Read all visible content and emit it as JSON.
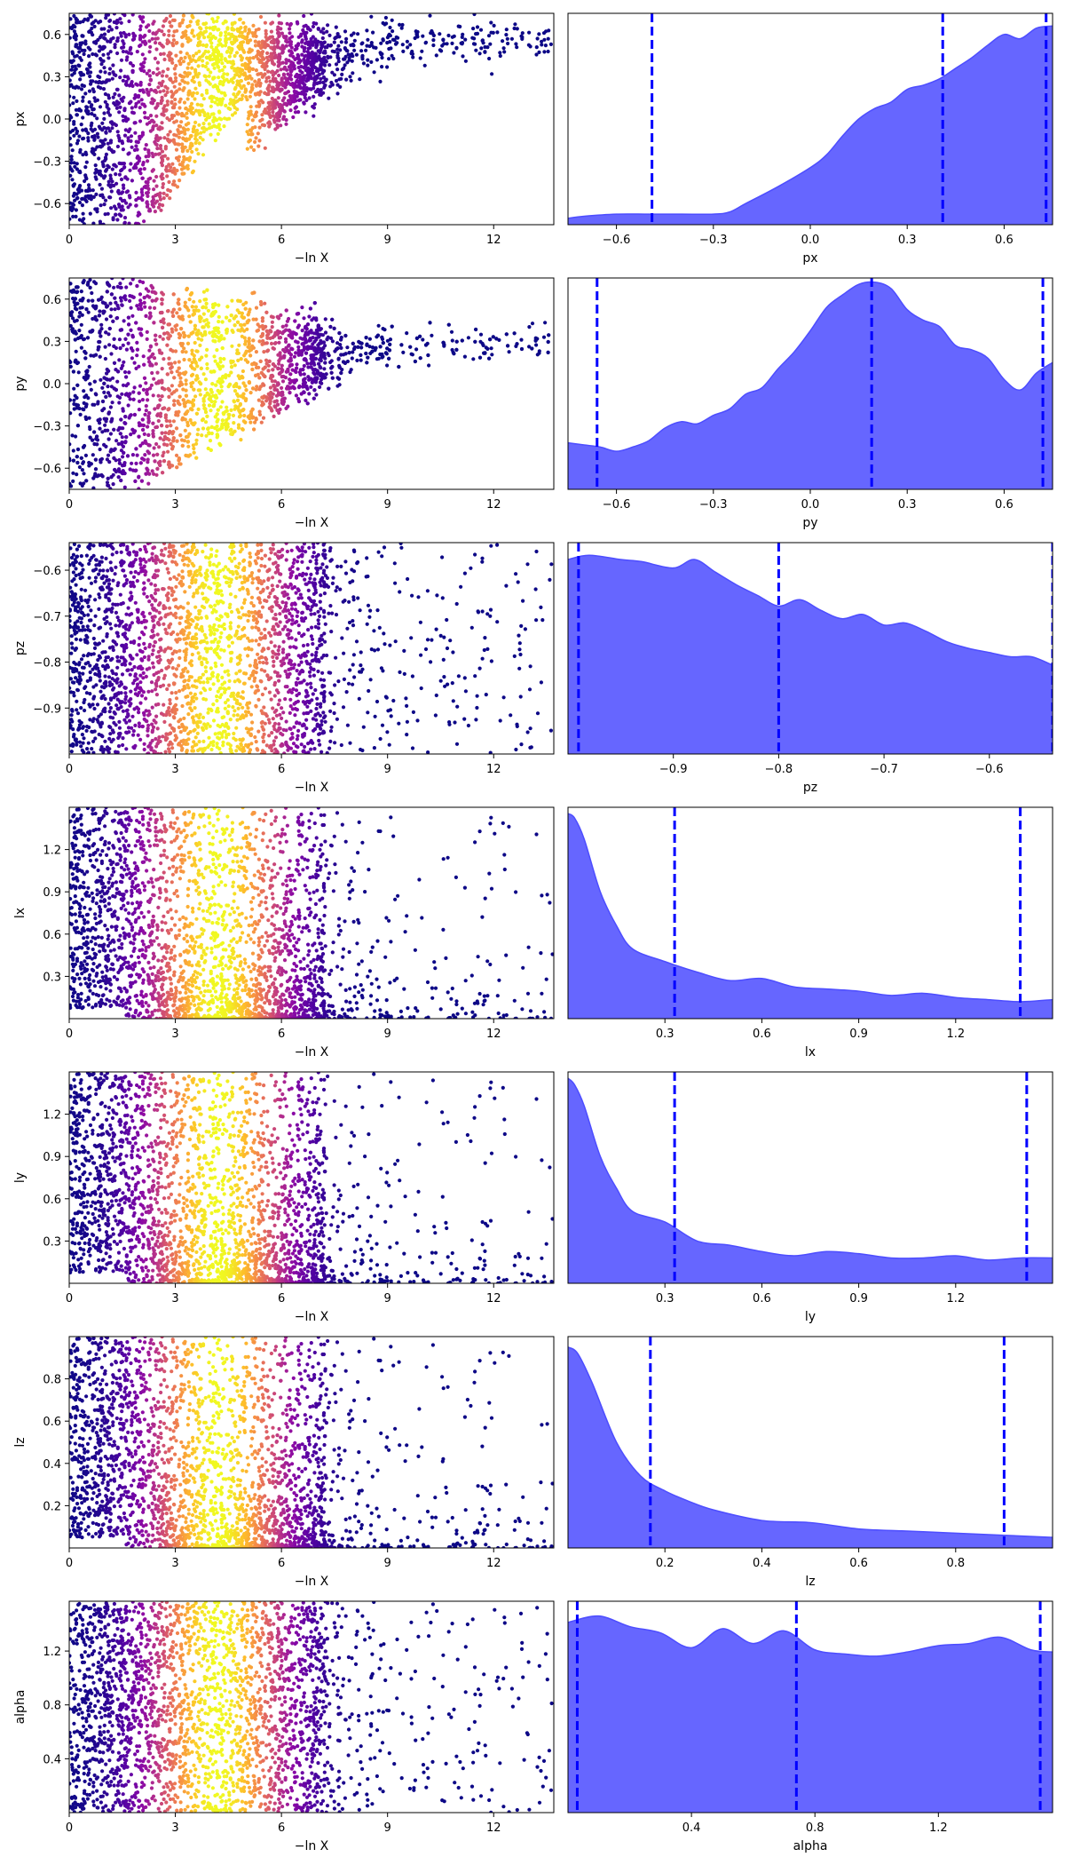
{
  "chart_data": [
    {
      "type": "scatter",
      "ylabel": "px",
      "xlabel": "−ln X",
      "xlim": [
        0,
        13.7
      ],
      "ylim": [
        -0.75,
        0.75
      ],
      "xticks": [
        0,
        3,
        6,
        9,
        12
      ],
      "xtick_labels": [
        "0",
        "3",
        "6",
        "9",
        "12"
      ],
      "yticks": [
        -0.6,
        -0.3,
        0,
        0.3,
        0.6
      ],
      "ytick_labels": [
        "−0.6",
        "−0.3",
        "0.0",
        "0.3",
        "0.6"
      ],
      "colormap": "plasma",
      "color_peak_x": 4.2,
      "pattern": {
        "kind": "posterior_shrink",
        "center": 0.55,
        "spread": 0.12
      }
    },
    {
      "type": "area",
      "xlabel": "px",
      "xlim": [
        -0.75,
        0.75
      ],
      "xticks": [
        -0.6,
        -0.3,
        0,
        0.3,
        0.6
      ],
      "xtick_labels": [
        "−0.6",
        "−0.3",
        "0.0",
        "0.3",
        "0.6"
      ],
      "x": [
        -0.75,
        -0.7,
        -0.6,
        -0.5,
        -0.4,
        -0.3,
        -0.25,
        -0.2,
        -0.1,
        0.0,
        0.05,
        0.1,
        0.15,
        0.2,
        0.25,
        0.3,
        0.35,
        0.4,
        0.45,
        0.5,
        0.55,
        0.6,
        0.65,
        0.7,
        0.75
      ],
      "y": [
        0.03,
        0.04,
        0.05,
        0.05,
        0.05,
        0.05,
        0.06,
        0.1,
        0.18,
        0.27,
        0.33,
        0.42,
        0.5,
        0.55,
        0.58,
        0.64,
        0.66,
        0.69,
        0.74,
        0.79,
        0.85,
        0.9,
        0.88,
        0.93,
        0.94
      ],
      "vlines": [
        -0.49,
        0.41,
        0.73
      ],
      "fill_color": "#6666ff",
      "line_color": "#4d4dff",
      "vline_color": "#0000ff"
    },
    {
      "type": "scatter",
      "ylabel": "py",
      "xlabel": "−ln X",
      "xlim": [
        0,
        13.7
      ],
      "ylim": [
        -0.75,
        0.75
      ],
      "xticks": [
        0,
        3,
        6,
        9,
        12
      ],
      "xtick_labels": [
        "0",
        "3",
        "6",
        "9",
        "12"
      ],
      "yticks": [
        -0.6,
        -0.3,
        0,
        0.3,
        0.6
      ],
      "ytick_labels": [
        "−0.6",
        "−0.3",
        "0.0",
        "0.3",
        "0.6"
      ],
      "colormap": "plasma",
      "color_peak_x": 4.2,
      "pattern": {
        "kind": "posterior_shrink",
        "center": 0.28,
        "spread": 0.1
      }
    },
    {
      "type": "area",
      "xlabel": "py",
      "xlim": [
        -0.75,
        0.75
      ],
      "xticks": [
        -0.6,
        -0.3,
        0,
        0.3,
        0.6
      ],
      "xtick_labels": [
        "−0.6",
        "−0.3",
        "0.0",
        "0.3",
        "0.6"
      ],
      "x": [
        -0.75,
        -0.7,
        -0.65,
        -0.6,
        -0.55,
        -0.5,
        -0.45,
        -0.4,
        -0.35,
        -0.3,
        -0.25,
        -0.2,
        -0.15,
        -0.1,
        -0.05,
        0.0,
        0.05,
        0.1,
        0.15,
        0.2,
        0.25,
        0.3,
        0.35,
        0.4,
        0.45,
        0.5,
        0.55,
        0.6,
        0.65,
        0.7,
        0.75
      ],
      "y": [
        0.22,
        0.21,
        0.2,
        0.18,
        0.2,
        0.23,
        0.29,
        0.32,
        0.31,
        0.35,
        0.38,
        0.45,
        0.48,
        0.57,
        0.65,
        0.75,
        0.86,
        0.92,
        0.97,
        0.98,
        0.95,
        0.85,
        0.8,
        0.77,
        0.68,
        0.66,
        0.62,
        0.52,
        0.47,
        0.55,
        0.6
      ],
      "vlines": [
        -0.66,
        0.19,
        0.72
      ],
      "fill_color": "#6666ff",
      "line_color": "#4d4dff",
      "vline_color": "#0000ff"
    },
    {
      "type": "scatter",
      "ylabel": "pz",
      "xlabel": "−ln X",
      "xlim": [
        0,
        13.7
      ],
      "ylim": [
        -1.0,
        -0.54
      ],
      "xticks": [
        0,
        3,
        6,
        9,
        12
      ],
      "xtick_labels": [
        "0",
        "3",
        "6",
        "9",
        "12"
      ],
      "yticks": [
        -0.9,
        -0.8,
        -0.7,
        -0.6
      ],
      "ytick_labels": [
        "−0.9",
        "−0.8",
        "−0.7",
        "−0.6"
      ],
      "colormap": "plasma",
      "color_peak_x": 4.2,
      "pattern": {
        "kind": "uniform_fade"
      }
    },
    {
      "type": "area",
      "xlabel": "pz",
      "xlim": [
        -1.0,
        -0.54
      ],
      "xticks": [
        -0.9,
        -0.8,
        -0.7,
        -0.6
      ],
      "xtick_labels": [
        "−0.9",
        "−0.8",
        "−0.7",
        "−0.6"
      ],
      "x": [
        -1.0,
        -0.98,
        -0.95,
        -0.93,
        -0.9,
        -0.88,
        -0.86,
        -0.84,
        -0.82,
        -0.8,
        -0.78,
        -0.76,
        -0.74,
        -0.72,
        -0.7,
        -0.68,
        -0.66,
        -0.64,
        -0.62,
        -0.6,
        -0.58,
        -0.56,
        -0.54
      ],
      "y": [
        0.92,
        0.94,
        0.92,
        0.91,
        0.88,
        0.92,
        0.86,
        0.8,
        0.75,
        0.7,
        0.73,
        0.68,
        0.64,
        0.66,
        0.61,
        0.62,
        0.58,
        0.53,
        0.5,
        0.48,
        0.46,
        0.46,
        0.42
      ],
      "vlines": [
        -0.99,
        -0.8,
        -0.54
      ],
      "fill_color": "#6666ff",
      "line_color": "#4d4dff",
      "vline_color": "#0000ff"
    },
    {
      "type": "scatter",
      "ylabel": "lx",
      "xlabel": "−ln X",
      "xlim": [
        0,
        13.7
      ],
      "ylim": [
        0,
        1.5
      ],
      "xticks": [
        0,
        3,
        6,
        9,
        12
      ],
      "xtick_labels": [
        "0",
        "3",
        "6",
        "9",
        "12"
      ],
      "yticks": [
        0.3,
        0.6,
        0.9,
        1.2
      ],
      "ytick_labels": [
        "0.3",
        "0.6",
        "0.9",
        "1.2"
      ],
      "colormap": "plasma",
      "color_peak_x": 4.2,
      "pattern": {
        "kind": "low_edge"
      }
    },
    {
      "type": "area",
      "xlabel": "lx",
      "xlim": [
        0,
        1.5
      ],
      "xticks": [
        0.3,
        0.6,
        0.9,
        1.2
      ],
      "xtick_labels": [
        "0.3",
        "0.6",
        "0.9",
        "1.2"
      ],
      "x": [
        0.0,
        0.02,
        0.05,
        0.1,
        0.15,
        0.2,
        0.3,
        0.4,
        0.5,
        0.6,
        0.7,
        0.8,
        0.9,
        1.0,
        1.1,
        1.2,
        1.3,
        1.4,
        1.5
      ],
      "y": [
        0.97,
        0.95,
        0.85,
        0.6,
        0.44,
        0.33,
        0.27,
        0.22,
        0.18,
        0.19,
        0.15,
        0.14,
        0.13,
        0.11,
        0.12,
        0.1,
        0.09,
        0.08,
        0.09
      ],
      "vlines": [
        0.33,
        1.4
      ],
      "fill_color": "#6666ff",
      "line_color": "#4d4dff",
      "vline_color": "#0000ff"
    },
    {
      "type": "scatter",
      "ylabel": "ly",
      "xlabel": "−ln X",
      "xlim": [
        0,
        13.7
      ],
      "ylim": [
        0,
        1.5
      ],
      "xticks": [
        0,
        3,
        6,
        9,
        12
      ],
      "xtick_labels": [
        "0",
        "3",
        "6",
        "9",
        "12"
      ],
      "yticks": [
        0.3,
        0.6,
        0.9,
        1.2
      ],
      "ytick_labels": [
        "0.3",
        "0.6",
        "0.9",
        "1.2"
      ],
      "colormap": "plasma",
      "color_peak_x": 4.2,
      "pattern": {
        "kind": "low_edge"
      }
    },
    {
      "type": "area",
      "xlabel": "ly",
      "xlim": [
        0,
        1.5
      ],
      "xticks": [
        0.3,
        0.6,
        0.9,
        1.2
      ],
      "xtick_labels": [
        "0.3",
        "0.6",
        "0.9",
        "1.2"
      ],
      "x": [
        0.0,
        0.02,
        0.05,
        0.1,
        0.15,
        0.2,
        0.3,
        0.4,
        0.5,
        0.6,
        0.7,
        0.8,
        0.9,
        1.0,
        1.1,
        1.2,
        1.3,
        1.4,
        1.5
      ],
      "y": [
        0.97,
        0.94,
        0.84,
        0.6,
        0.45,
        0.34,
        0.29,
        0.2,
        0.18,
        0.15,
        0.13,
        0.15,
        0.14,
        0.12,
        0.12,
        0.13,
        0.11,
        0.12,
        0.12
      ],
      "vlines": [
        0.33,
        1.42
      ],
      "fill_color": "#6666ff",
      "line_color": "#4d4dff",
      "vline_color": "#0000ff"
    },
    {
      "type": "scatter",
      "ylabel": "lz",
      "xlabel": "−ln X",
      "xlim": [
        0,
        13.7
      ],
      "ylim": [
        0,
        1.0
      ],
      "xticks": [
        0,
        3,
        6,
        9,
        12
      ],
      "xtick_labels": [
        "0",
        "3",
        "6",
        "9",
        "12"
      ],
      "yticks": [
        0.2,
        0.4,
        0.6,
        0.8
      ],
      "ytick_labels": [
        "0.2",
        "0.4",
        "0.6",
        "0.8"
      ],
      "colormap": "plasma",
      "color_peak_x": 4.2,
      "pattern": {
        "kind": "low_edge"
      }
    },
    {
      "type": "area",
      "xlabel": "lz",
      "xlim": [
        0,
        1.0
      ],
      "xticks": [
        0.2,
        0.4,
        0.6,
        0.8
      ],
      "xtick_labels": [
        "0.2",
        "0.4",
        "0.6",
        "0.8"
      ],
      "x": [
        0.0,
        0.02,
        0.05,
        0.1,
        0.15,
        0.2,
        0.25,
        0.3,
        0.4,
        0.5,
        0.6,
        0.7,
        0.8,
        0.9,
        1.0
      ],
      "y": [
        0.95,
        0.92,
        0.78,
        0.5,
        0.34,
        0.27,
        0.22,
        0.18,
        0.13,
        0.12,
        0.09,
        0.08,
        0.07,
        0.06,
        0.05
      ],
      "vlines": [
        0.17,
        0.9
      ],
      "fill_color": "#6666ff",
      "line_color": "#4d4dff",
      "vline_color": "#0000ff"
    },
    {
      "type": "scatter",
      "ylabel": "alpha",
      "xlabel": "−ln X",
      "xlim": [
        0,
        13.7
      ],
      "ylim": [
        0,
        1.57
      ],
      "xticks": [
        0,
        3,
        6,
        9,
        12
      ],
      "xtick_labels": [
        "0",
        "3",
        "6",
        "9",
        "12"
      ],
      "yticks": [
        0.4,
        0.8,
        1.2
      ],
      "ytick_labels": [
        "0.4",
        "0.8",
        "1.2"
      ],
      "colormap": "plasma",
      "color_peak_x": 4.2,
      "pattern": {
        "kind": "uniform_fade"
      }
    },
    {
      "type": "area",
      "xlabel": "alpha",
      "xlim": [
        0,
        1.57
      ],
      "xticks": [
        0.4,
        0.8,
        1.2
      ],
      "xtick_labels": [
        "0.4",
        "0.8",
        "1.2"
      ],
      "x": [
        0.0,
        0.1,
        0.2,
        0.3,
        0.4,
        0.5,
        0.6,
        0.7,
        0.8,
        0.9,
        1.0,
        1.1,
        1.2,
        1.3,
        1.4,
        1.5,
        1.57
      ],
      "y": [
        0.9,
        0.93,
        0.88,
        0.85,
        0.78,
        0.87,
        0.8,
        0.86,
        0.77,
        0.75,
        0.74,
        0.76,
        0.79,
        0.8,
        0.83,
        0.77,
        0.76
      ],
      "vlines": [
        0.03,
        0.74,
        1.53
      ],
      "fill_color": "#6666ff",
      "line_color": "#4d4dff",
      "vline_color": "#0000ff"
    }
  ]
}
